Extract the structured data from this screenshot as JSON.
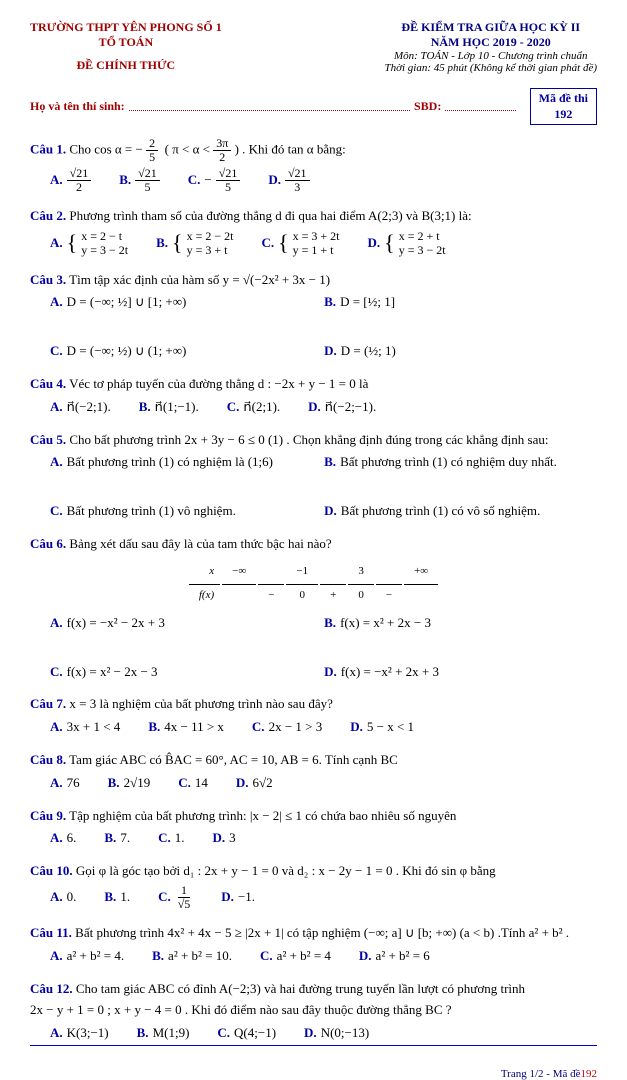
{
  "header": {
    "school": "TRƯỜNG THPT YÊN PHONG SỐ 1",
    "dept": "TỔ TOÁN",
    "official": "ĐỀ CHÍNH THỨC",
    "exam_title": "ĐỀ KIỂM TRA GIỮA HỌC KỲ II",
    "year": "NĂM HỌC 2019 - 2020",
    "subject": "Môn: TOÁN - Lớp 10 - Chương trình chuẩn",
    "time": "Thời gian: 45 phút (Không kể thời gian phát đề)",
    "student": "Họ và tên thí sinh:",
    "sbd": "SBD:",
    "code_label": "Mã đề thi",
    "code_value": "192"
  },
  "q1": {
    "label": "Câu 1.",
    "stem_prefix": "Cho cos α = −",
    "cond": "π < α <",
    "cond_rhs": "3π",
    "stem_suffix": ". Khi đó  tan α  bằng:",
    "A": {
      "num": "√21",
      "den": "2"
    },
    "B": {
      "num": "√21",
      "den": "5"
    },
    "C": {
      "num": "√21",
      "den": "5",
      "neg": "−"
    },
    "D": {
      "num": "√21",
      "den": "3"
    }
  },
  "q2": {
    "label": "Câu 2.",
    "stem": "Phương trình tham số của đường thẳng d đi qua hai điểm  A(2;3)  và  B(3;1)  là:",
    "A": [
      "x = 2 − t",
      "y = 3 − 2t"
    ],
    "B": [
      "x = 2 − 2t",
      "y = 3 + t"
    ],
    "C": [
      "x = 3 + 2t",
      "y = 1 + t"
    ],
    "D": [
      "x = 2 + t",
      "y = 3 − 2t"
    ]
  },
  "q3": {
    "label": "Câu 3.",
    "stem": "Tìm tập xác định của hàm số  y = √(−2x² + 3x − 1)",
    "A": "D = (−∞; ½] ∪ [1; +∞)",
    "B": "D = [½; 1]",
    "C": "D = (−∞; ½) ∪ (1; +∞)",
    "D": "D = (½; 1)"
  },
  "q4": {
    "label": "Câu 4.",
    "stem": "Véc tơ pháp tuyến của đường thẳng  d : −2x + y − 1 = 0  là",
    "A": "n⃗(−2;1).",
    "B": "n⃗(1;−1).",
    "C": "n⃗(2;1).",
    "D": "n⃗(−2;−1)."
  },
  "q5": {
    "label": "Câu 5.",
    "stem": "Cho bất phương trình  2x + 3y − 6 ≤ 0 (1) . Chọn khẳng định đúng trong các khẳng định sau:",
    "A": "Bất phương trình (1) có nghiệm là (1;6)",
    "B": "Bất phương trình (1) có nghiệm duy nhất.",
    "C": "Bất phương trình (1) vô nghiệm.",
    "D": "Bất phương trình (1) có vô số nghiệm."
  },
  "q6": {
    "label": "Câu 6.",
    "stem": "Bảng xét dấu sau đây là của tam thức bậc hai nào?",
    "x_row": [
      "x",
      "−∞",
      "",
      "−1",
      "",
      "3",
      "",
      "+∞"
    ],
    "f_row": [
      "f(x)",
      "",
      "−",
      "0",
      "+",
      "0",
      "−",
      ""
    ],
    "A": "f(x) = −x² − 2x + 3",
    "B": "f(x) = x² + 2x − 3",
    "C": "f(x) = x² − 2x − 3",
    "D": "f(x) = −x² + 2x + 3"
  },
  "q7": {
    "label": "Câu 7.",
    "stem": "x = 3 là nghiệm của bất phương trình nào sau đây?",
    "A": "3x + 1 < 4",
    "B": "4x − 11 > x",
    "C": "2x − 1 > 3",
    "D": "5 − x < 1"
  },
  "q8": {
    "label": "Câu 8.",
    "stem": "Tam giác  ABC  có  B̂AC = 60°, AC = 10, AB = 6.  Tính cạnh  BC",
    "A": "76",
    "B": "2√19",
    "C": "14",
    "D": "6√2"
  },
  "q9": {
    "label": "Câu 9.",
    "stem": "Tập nghiệm của bất phương trình:  |x − 2| ≤ 1  có chứa bao nhiêu số nguyên",
    "A": "6.",
    "B": "7.",
    "C": "1.",
    "D": "3"
  },
  "q10": {
    "label": "Câu 10.",
    "stem": "Gọi φ là góc tạo bởi  d₁ : 2x + y − 1 = 0  và  d₂ : x − 2y − 1 = 0 . Khi đó  sin φ  bằng",
    "A": "0.",
    "B": "1.",
    "C_num": "1",
    "C_den": "√5",
    "D": "−1."
  },
  "q11": {
    "label": "Câu 11.",
    "stem": "Bất phương trình  4x² + 4x − 5 ≥ |2x + 1|  có tập nghiệm  (−∞; a] ∪ [b; +∞)  (a < b) .Tính  a² + b² .",
    "A": "a² + b² = 4.",
    "B": "a² + b² = 10.",
    "C": "a² + b² = 4",
    "D": "a² + b² = 6"
  },
  "q12": {
    "label": "Câu 12.",
    "stem1": "Cho tam giác  ABC  có đỉnh  A(−2;3) và hai đường trung tuyến lần lượt có phương trình",
    "stem2": "2x − y + 1 = 0 ;  x + y − 4 = 0 . Khi đó điểm nào sau đây thuộc đường thẳng  BC ?",
    "A": "K(3;−1)",
    "B": "M(1;9)",
    "C": "Q(4;−1)",
    "D": "N(0;−13)"
  },
  "footer": {
    "page": "Trang 1/2 - Mã đề ",
    "code": "192"
  },
  "colors": {
    "blue": "#0000a0",
    "red": "#a00000",
    "hr": "#0000cc",
    "text": "#000000",
    "bg": "#ffffff"
  }
}
